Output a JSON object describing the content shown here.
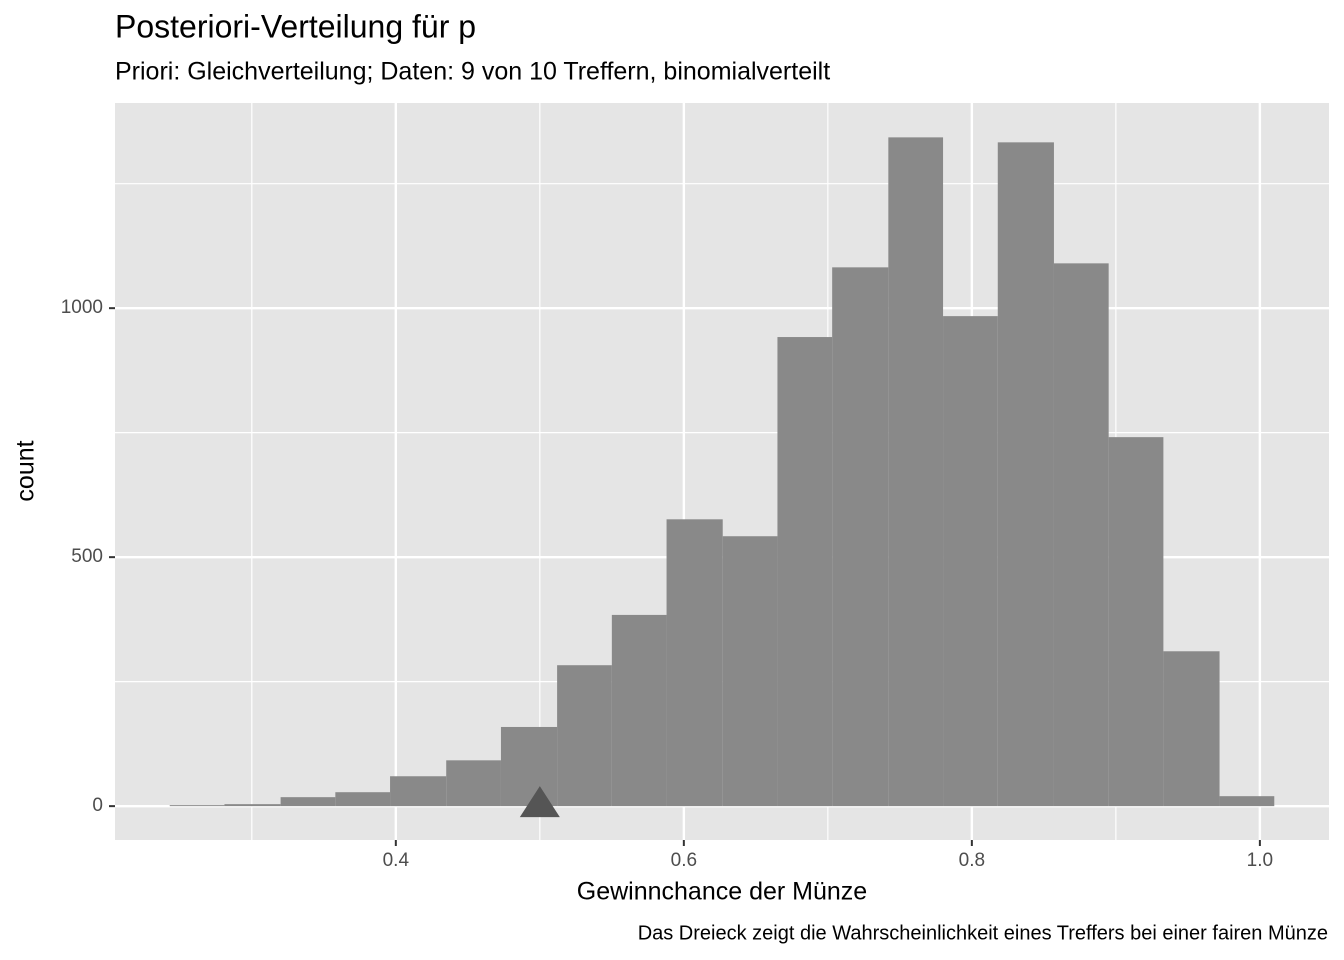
{
  "chart_data": {
    "type": "histogram",
    "title": "Posteriori-Verteilung für p",
    "subtitle": "Priori: Gleichverteilung; Daten: 9 von 10 Treffern, binomialverteilt",
    "x_label": "Gewinnchance der Münze",
    "y_label": "count",
    "caption": "Das Dreieck zeigt die Wahrscheinlichkeit eines Treffers bei einer fairen Münze",
    "bins": [
      0.243,
      0.281,
      0.32,
      0.358,
      0.396,
      0.435,
      0.473,
      0.512,
      0.55,
      0.588,
      0.627,
      0.665,
      0.703,
      0.742,
      0.78,
      0.818,
      0.857,
      0.895,
      0.933,
      0.972,
      1.01
    ],
    "values": [
      2,
      4,
      18,
      28,
      60,
      92,
      159,
      283,
      384,
      576,
      542,
      942,
      1082,
      1343,
      984,
      1333,
      1090,
      741,
      311,
      20
    ],
    "color": "#898989",
    "xlim": [
      0.205,
      1.048
    ],
    "ylim": [
      -68,
      1412
    ],
    "xticks": [
      {
        "value": 0.4,
        "label": "0.4"
      },
      {
        "value": 0.6,
        "label": "0.6"
      },
      {
        "value": 0.8,
        "label": "0.8"
      },
      {
        "value": 1.0,
        "label": "1.0"
      }
    ],
    "yticks": [
      0,
      500,
      1000
    ],
    "minor_xticks": [
      0.3,
      0.5,
      0.7,
      0.9
    ],
    "minor_yticks": [
      250,
      750,
      1250
    ],
    "grid": true,
    "marker": {
      "x": 0.5,
      "y": 0,
      "color": "#555555"
    }
  }
}
